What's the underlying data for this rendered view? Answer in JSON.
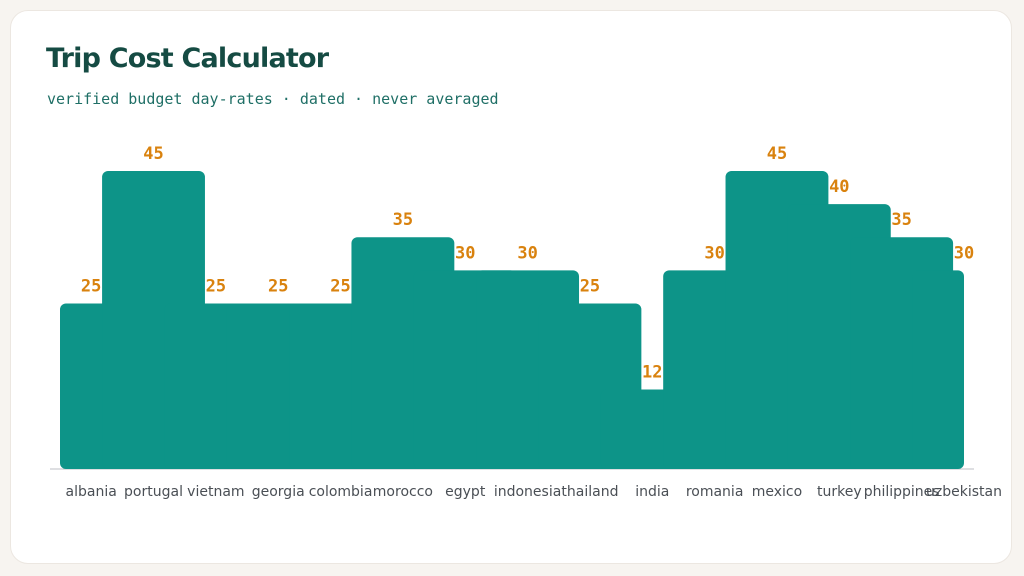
{
  "title": "Trip Cost Calculator",
  "subtitle": "verified budget day-rates · dated · never averaged",
  "chart_data": {
    "type": "bar",
    "title": "Trip Cost Calculator",
    "subtitle": "verified budget day-rates · dated · never averaged",
    "categories": [
      "albania",
      "portugal",
      "vietnam",
      "georgia",
      "colombia",
      "morocco",
      "egypt",
      "indonesia",
      "thailand",
      "india",
      "romania",
      "mexico",
      "turkey",
      "philippines",
      "uzbekistan"
    ],
    "values": [
      25,
      45,
      25,
      25,
      25,
      35,
      30,
      30,
      25,
      12,
      30,
      45,
      40,
      35,
      30
    ],
    "ylim": [
      0,
      45
    ],
    "grid": false,
    "legend": "none",
    "data_labels": true,
    "colors": {
      "bar": "#0d9488",
      "label": "#d9820e",
      "axis": "#c9ccd1",
      "tick_text": "#4a4f55"
    }
  }
}
